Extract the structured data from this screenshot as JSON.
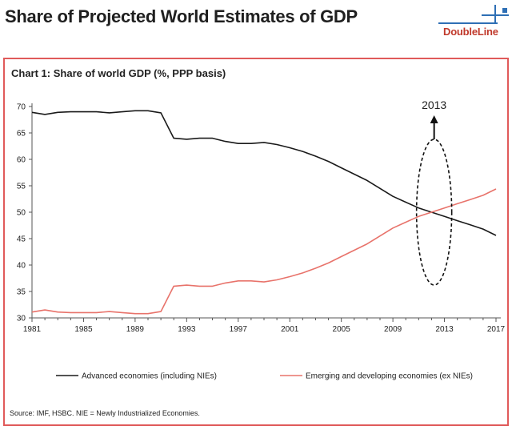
{
  "page": {
    "title": "Share of Projected World Estimates of GDP",
    "brand": "DoubleLine",
    "source": "Source: IMF, HSBC. NIE = Newly Industrialized Economies."
  },
  "colors": {
    "frame": "#e05a5a",
    "advanced": "#1a1a1a",
    "emerging": "#e8736b",
    "brand_red": "#c0392b",
    "brand_blue": "#2e6fb5",
    "axis": "#555555"
  },
  "chart_data": {
    "type": "line",
    "title": "Chart 1: Share of world GDP (%, PPP basis)",
    "xlabel": "",
    "ylabel": "",
    "xlim": [
      1981,
      2017
    ],
    "ylim": [
      30,
      70
    ],
    "x_ticks": [
      1981,
      1985,
      1989,
      1993,
      1997,
      2001,
      2005,
      2009,
      2013,
      2017
    ],
    "x_tick_labels": [
      "1981",
      "1985",
      "1989",
      "1993",
      "1997",
      "2001",
      "2005",
      "2009",
      "2013",
      "2017"
    ],
    "y_ticks": [
      30,
      35,
      40,
      45,
      50,
      55,
      60,
      65,
      70
    ],
    "y_tick_labels": [
      "30",
      "35",
      "40",
      "45",
      "50",
      "55",
      "60",
      "65",
      "70"
    ],
    "x": [
      1981,
      1982,
      1983,
      1984,
      1985,
      1986,
      1987,
      1988,
      1989,
      1990,
      1991,
      1992,
      1993,
      1994,
      1995,
      1996,
      1997,
      1998,
      1999,
      2000,
      2001,
      2002,
      2003,
      2004,
      2005,
      2006,
      2007,
      2008,
      2009,
      2010,
      2011,
      2012,
      2013,
      2014,
      2015,
      2016,
      2017
    ],
    "series": [
      {
        "name": "Advanced economies (including NIEs)",
        "color": "#1a1a1a",
        "values": [
          68.9,
          68.5,
          68.9,
          69.0,
          69.0,
          69.0,
          68.8,
          69.0,
          69.2,
          69.2,
          68.8,
          64.0,
          63.8,
          64.0,
          64.0,
          63.4,
          63.0,
          63.0,
          63.2,
          62.8,
          62.2,
          61.5,
          60.6,
          59.6,
          58.4,
          57.2,
          56.0,
          54.5,
          53.0,
          51.9,
          50.8,
          50.0,
          49.2,
          48.4,
          47.6,
          46.8,
          45.6
        ]
      },
      {
        "name": "Emerging and developing economies (ex NIEs)",
        "color": "#e8736b",
        "values": [
          31.1,
          31.5,
          31.1,
          31.0,
          31.0,
          31.0,
          31.2,
          31.0,
          30.8,
          30.8,
          31.2,
          36.0,
          36.2,
          36.0,
          36.0,
          36.6,
          37.0,
          37.0,
          36.8,
          37.2,
          37.8,
          38.5,
          39.4,
          40.4,
          41.6,
          42.8,
          44.0,
          45.5,
          47.0,
          48.1,
          49.2,
          50.0,
          50.8,
          51.6,
          52.4,
          53.2,
          54.4
        ]
      }
    ],
    "annotations": [
      {
        "text": "2013",
        "x": 2012.2,
        "y": 50,
        "kind": "dashed-ellipse-with-arrow"
      }
    ],
    "legend_position": "bottom",
    "grid": false
  }
}
